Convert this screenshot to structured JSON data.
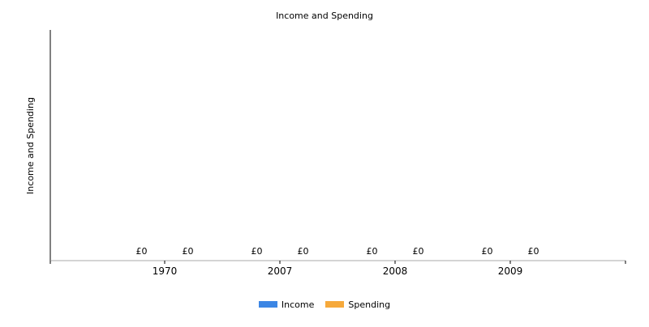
{
  "chart_data": {
    "type": "bar",
    "title": "Income and Spending",
    "xlabel": "",
    "ylabel": "Income and Spending",
    "categories": [
      "1970",
      "2007",
      "2008",
      "2009"
    ],
    "series": [
      {
        "name": "Income",
        "color": "#3C86E4",
        "values": [
          0,
          0,
          0,
          0
        ],
        "labels": [
          "£0",
          "£0",
          "£0",
          "£0"
        ]
      },
      {
        "name": "Spending",
        "color": "#F6A93B",
        "values": [
          0,
          0,
          0,
          0
        ],
        "labels": [
          "£0",
          "£0",
          "£0",
          "£0"
        ]
      }
    ],
    "grid": false,
    "legend_position": "bottom-center"
  }
}
